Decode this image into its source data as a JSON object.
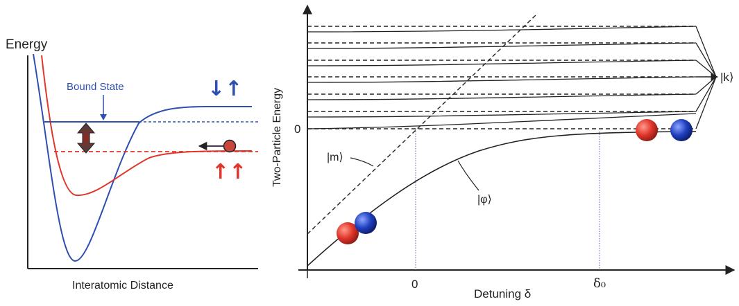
{
  "left_panel": {
    "y_axis_label": "Energy",
    "x_axis_label": "Interatomic Distance",
    "bound_state_label": "Bound State",
    "spin_blue": "↓↑",
    "spin_red": "↑↑",
    "colors": {
      "blue": "#2f4fb0",
      "red": "#e0352b",
      "arrow": "#8a2b22"
    }
  },
  "right_panel": {
    "y_axis_label": "Two-Particle Energy",
    "x_axis_label": "Detuning δ",
    "y_tick_zero": "0",
    "x_tick_zero": "0",
    "x_tick_delta0": "δ₀",
    "state_m": "|m⟩",
    "state_phi": "|φ⟩",
    "state_k": "|k⟩",
    "colors": {
      "atom_red": "#e0352b",
      "atom_blue": "#2040c0"
    }
  }
}
